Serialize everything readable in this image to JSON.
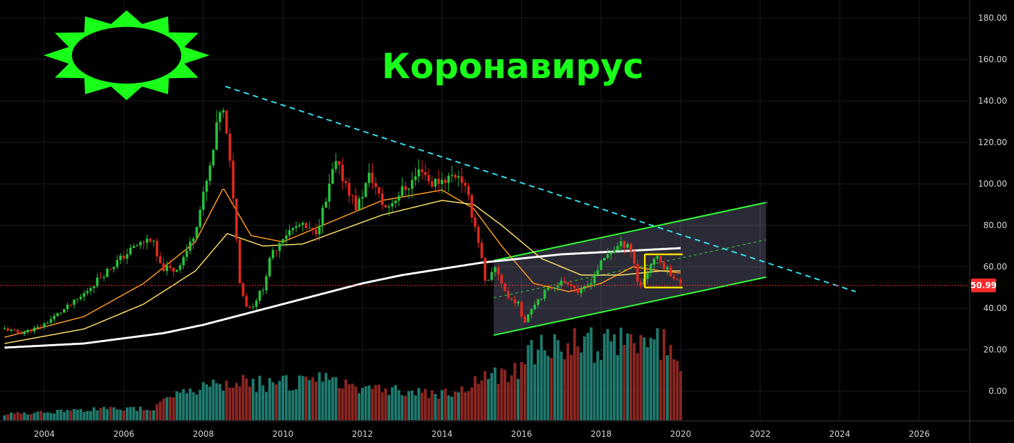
{
  "title": "Коронавирус",
  "last_price_label": "50.99",
  "colors": {
    "background": "#000000",
    "up": "#26c23b",
    "down": "#e0281e",
    "vol_up": "#1f7a6e",
    "vol_down": "#8a2622",
    "ma_fast": "#ff9a1f",
    "ma_slow": "#ffe066",
    "ma_long": "#ffffff",
    "channel": "#33ff33",
    "trendline": "#33e0f0",
    "last_price": "#ff2a2a",
    "box": "#ffe000",
    "logo": "#1aff1a",
    "grid": "#1b1b24",
    "axis_text": "#d6d6d6"
  },
  "chart_data": {
    "type": "candlestick",
    "title": "Коронавирус",
    "x_tick_labels": [
      "2004",
      "2006",
      "2008",
      "2010",
      "2012",
      "2014",
      "2016",
      "2018",
      "2020",
      "2022",
      "2024",
      "2026"
    ],
    "y_tick_labels": [
      "0.00",
      "20.00",
      "40.00",
      "60.00",
      "80.00",
      "100.00",
      "120.00",
      "140.00",
      "160.00",
      "180.00"
    ],
    "xlim": [
      2003.0,
      2027.4
    ],
    "ylim": [
      -14,
      186
    ],
    "last_price": 50.99,
    "price_anchors": [
      [
        2003.0,
        30
      ],
      [
        2003.4,
        28
      ],
      [
        2003.9,
        31
      ],
      [
        2004.4,
        38
      ],
      [
        2004.9,
        45
      ],
      [
        2005.4,
        55
      ],
      [
        2005.8,
        62
      ],
      [
        2006.3,
        70
      ],
      [
        2006.7,
        74
      ],
      [
        2006.9,
        60
      ],
      [
        2007.3,
        58
      ],
      [
        2007.7,
        72
      ],
      [
        2007.95,
        90
      ],
      [
        2008.2,
        110
      ],
      [
        2008.45,
        140
      ],
      [
        2008.6,
        120
      ],
      [
        2008.75,
        95
      ],
      [
        2008.9,
        55
      ],
      [
        2009.05,
        42
      ],
      [
        2009.2,
        40
      ],
      [
        2009.5,
        50
      ],
      [
        2009.7,
        65
      ],
      [
        2010.0,
        75
      ],
      [
        2010.4,
        80
      ],
      [
        2010.8,
        76
      ],
      [
        2011.1,
        92
      ],
      [
        2011.3,
        110
      ],
      [
        2011.6,
        100
      ],
      [
        2011.85,
        88
      ],
      [
        2012.2,
        105
      ],
      [
        2012.45,
        92
      ],
      [
        2012.6,
        88
      ],
      [
        2012.9,
        95
      ],
      [
        2013.2,
        100
      ],
      [
        2013.5,
        108
      ],
      [
        2013.7,
        100
      ],
      [
        2014.0,
        102
      ],
      [
        2014.45,
        105
      ],
      [
        2014.7,
        90
      ],
      [
        2014.95,
        70
      ],
      [
        2015.1,
        50
      ],
      [
        2015.35,
        60
      ],
      [
        2015.65,
        45
      ],
      [
        2015.9,
        43
      ],
      [
        2016.05,
        33
      ],
      [
        2016.3,
        42
      ],
      [
        2016.6,
        48
      ],
      [
        2016.9,
        52
      ],
      [
        2017.2,
        53
      ],
      [
        2017.45,
        47
      ],
      [
        2017.7,
        52
      ],
      [
        2017.95,
        60
      ],
      [
        2018.2,
        67
      ],
      [
        2018.45,
        70
      ],
      [
        2018.7,
        72
      ],
      [
        2018.85,
        60
      ],
      [
        2018.95,
        50
      ],
      [
        2019.1,
        55
      ],
      [
        2019.35,
        65
      ],
      [
        2019.6,
        60
      ],
      [
        2019.85,
        55
      ],
      [
        2020.0,
        51
      ]
    ],
    "volume_anchors": [
      [
        2003.0,
        3
      ],
      [
        2005.0,
        5
      ],
      [
        2006.8,
        6
      ],
      [
        2007.0,
        12
      ],
      [
        2008.0,
        15
      ],
      [
        2009.0,
        18
      ],
      [
        2010.0,
        18
      ],
      [
        2011.0,
        19
      ],
      [
        2012.0,
        17
      ],
      [
        2013.5,
        13
      ],
      [
        2014.5,
        14
      ],
      [
        2015.0,
        20
      ],
      [
        2015.9,
        24
      ],
      [
        2016.0,
        34
      ],
      [
        2017.0,
        33
      ],
      [
        2017.5,
        40
      ],
      [
        2018.0,
        35
      ],
      [
        2018.6,
        37
      ],
      [
        2019.0,
        36
      ],
      [
        2019.5,
        38
      ],
      [
        2020.0,
        31
      ]
    ],
    "series": [
      {
        "name": "",
        "values": [
          [
            2003.0,
            26
          ],
          [
            2005.0,
            36
          ],
          [
            2006.5,
            52
          ],
          [
            2007.8,
            72
          ],
          [
            2008.5,
            98
          ],
          [
            2009.2,
            75
          ],
          [
            2010.0,
            72
          ],
          [
            2011.5,
            84
          ],
          [
            2012.5,
            92
          ],
          [
            2014.0,
            97
          ],
          [
            2014.8,
            88
          ],
          [
            2015.5,
            70
          ],
          [
            2016.3,
            52
          ],
          [
            2017.2,
            48
          ],
          [
            2018.0,
            52
          ],
          [
            2018.8,
            60
          ],
          [
            2019.5,
            58
          ],
          [
            2020.0,
            57
          ]
        ]
      },
      {
        "name": "",
        "values": [
          [
            2003.0,
            23
          ],
          [
            2005.0,
            30
          ],
          [
            2006.5,
            42
          ],
          [
            2007.8,
            58
          ],
          [
            2008.6,
            76
          ],
          [
            2009.5,
            70
          ],
          [
            2010.5,
            71
          ],
          [
            2011.5,
            78
          ],
          [
            2012.5,
            85
          ],
          [
            2014.0,
            92
          ],
          [
            2014.8,
            90
          ],
          [
            2015.5,
            80
          ],
          [
            2016.5,
            64
          ],
          [
            2017.5,
            56
          ],
          [
            2018.5,
            56
          ],
          [
            2019.5,
            58
          ],
          [
            2020.0,
            58
          ]
        ]
      },
      {
        "name": "",
        "values": [
          [
            2003.0,
            21
          ],
          [
            2005.0,
            23
          ],
          [
            2007.0,
            28
          ],
          [
            2008.0,
            32
          ],
          [
            2009.0,
            37
          ],
          [
            2010.0,
            42
          ],
          [
            2011.0,
            47
          ],
          [
            2012.0,
            52
          ],
          [
            2013.0,
            56
          ],
          [
            2014.0,
            59
          ],
          [
            2015.0,
            62
          ],
          [
            2016.0,
            64
          ],
          [
            2017.0,
            66
          ],
          [
            2018.0,
            67
          ],
          [
            2019.0,
            68
          ],
          [
            2020.0,
            69
          ]
        ]
      }
    ],
    "annotations": {
      "channel": {
        "x": [
          2015.3,
          2022.15
        ],
        "lower": [
          27,
          55
        ],
        "upper": [
          63,
          91
        ]
      },
      "trendline": {
        "from": [
          2008.55,
          147
        ],
        "to": [
          2024.4,
          48
        ]
      },
      "box": {
        "x": [
          2019.1,
          2020.05
        ],
        "y": [
          50,
          66
        ]
      }
    }
  }
}
